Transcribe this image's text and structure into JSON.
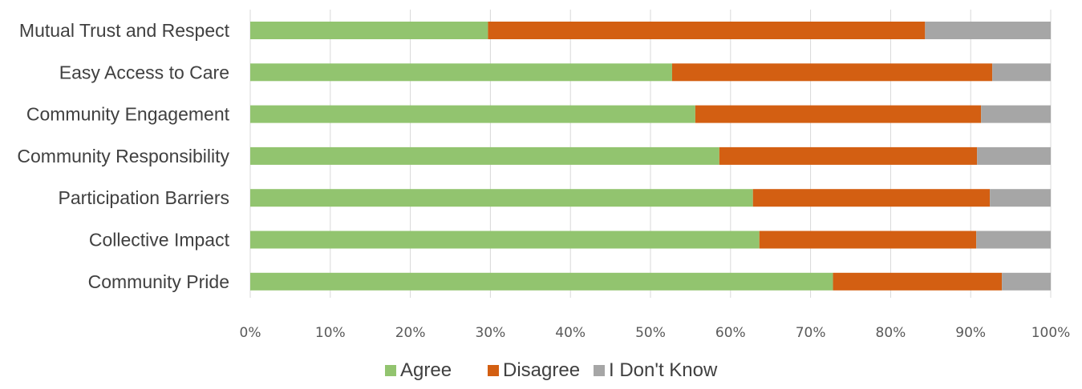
{
  "chart_data": {
    "type": "bar",
    "orientation": "horizontal",
    "stacked": true,
    "categories": [
      "Mutual Trust and Respect",
      "Easy Access to Care",
      "Community Engagement",
      "Community Responsibility",
      "Participation Barriers",
      "Collective Impact",
      "Community Pride"
    ],
    "series": [
      {
        "name": "Agree",
        "color": "#92c46f",
        "values": [
          29.7,
          52.7,
          55.6,
          58.6,
          62.8,
          63.6,
          72.8
        ]
      },
      {
        "name": "Disagree",
        "color": "#d35f12",
        "values": [
          54.6,
          40.0,
          35.7,
          32.2,
          29.6,
          27.1,
          21.1
        ]
      },
      {
        "name": "I Don't Know",
        "color": "#a6a6a6",
        "values": [
          15.7,
          7.3,
          8.7,
          9.2,
          7.6,
          9.3,
          6.1
        ]
      }
    ],
    "xlim": [
      0,
      100
    ],
    "x_ticks": [
      "0%",
      "10%",
      "20%",
      "30%",
      "40%",
      "50%",
      "60%",
      "70%",
      "80%",
      "90%",
      "100%"
    ],
    "grid": true,
    "legend_position": "bottom"
  }
}
